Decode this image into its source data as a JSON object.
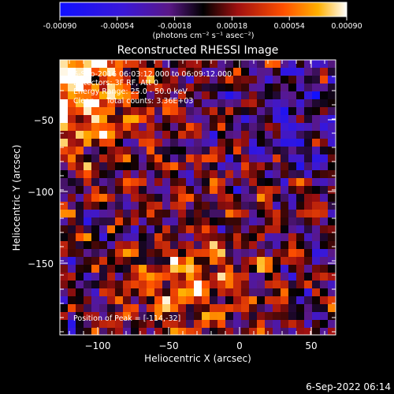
{
  "colorbar": {
    "tick_labels": [
      "-0.00090",
      "-0.00054",
      "-0.00018",
      "0.00018",
      "0.00054",
      "0.00090"
    ],
    "units": "(photons cm⁻² s⁻¹ asec⁻²)"
  },
  "image": {
    "title": "Reconstructed RHESSI Image",
    "info_lines": [
      "6-Sep-2016 06:03:12.000 to 06:09:12.000",
      "Detectors: 3F RF, Att 0",
      "Energy Range: 25.0 - 50.0 keV",
      "Clean     Total counts: 3.36E+03"
    ],
    "peak_text": "Position of Peak = [-114,-32]"
  },
  "axes": {
    "xlabel": "Heliocentric X (arcsec)",
    "ylabel": "Heliocentric Y (arcsec)",
    "xticks": [
      "−100",
      "−50",
      "0",
      "50"
    ],
    "yticks": [
      "−50",
      "−100",
      "−150"
    ]
  },
  "footer": {
    "timestamp": "6-Sep-2022 06:14"
  },
  "colors": {
    "background": "#000000",
    "text": "#ffffff"
  }
}
